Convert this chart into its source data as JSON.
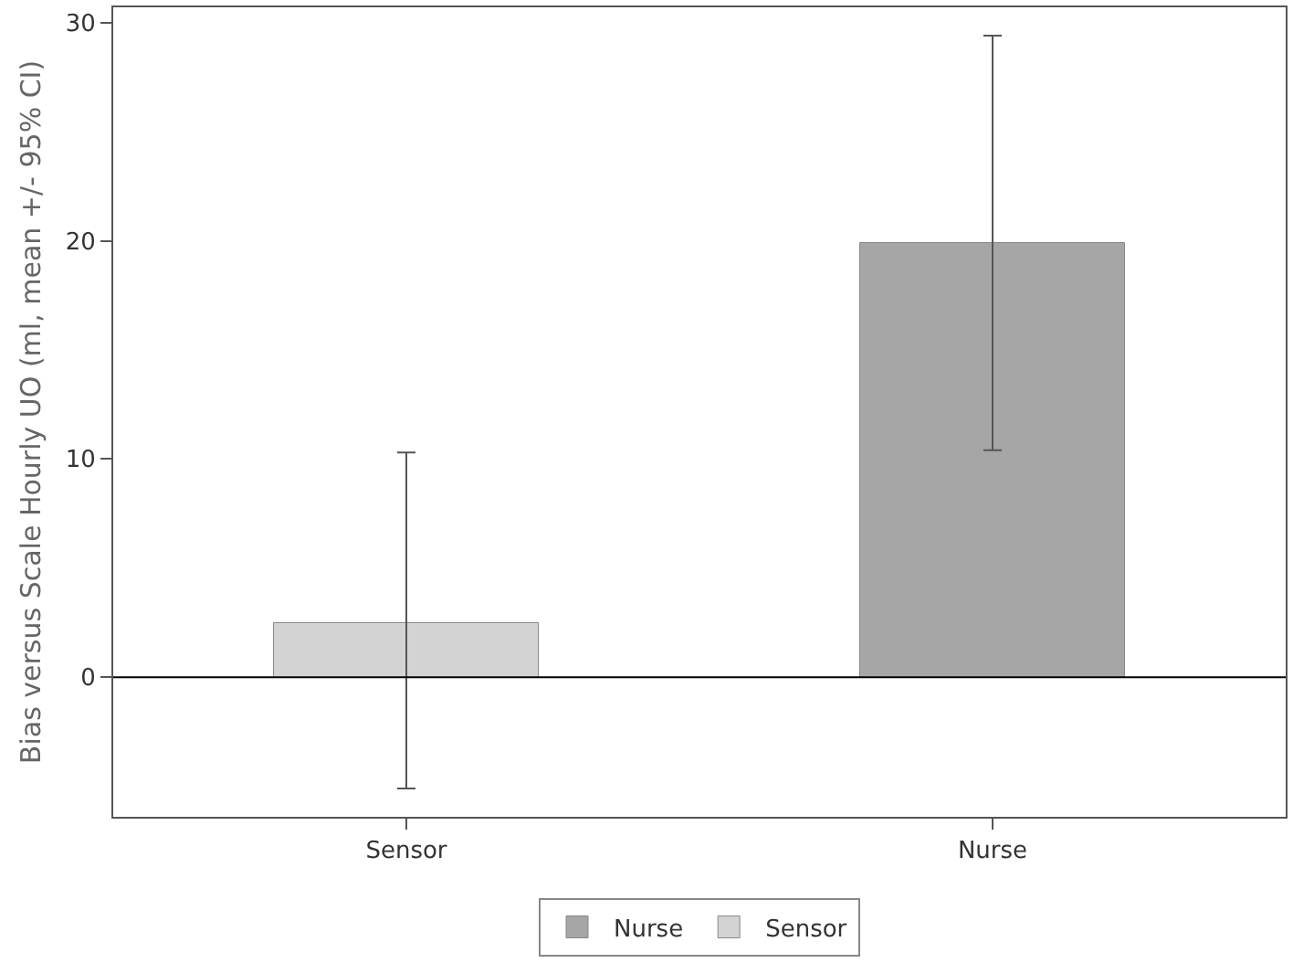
{
  "chart_data": {
    "type": "bar",
    "ylabel": "Bias versus Scale Hourly UO (ml, mean +/- 95% CI)",
    "categories": [
      "Sensor",
      "Nurse"
    ],
    "series": [
      {
        "name": "Nurse",
        "color": "#a6a6a6",
        "values": [
          null,
          19.9
        ],
        "errors": [
          null,
          [
            10.4,
            29.4
          ]
        ]
      },
      {
        "name": "Sensor",
        "color": "#d3d3d3",
        "values": [
          2.5,
          null
        ],
        "errors": [
          [
            -5.1,
            10.3
          ],
          null
        ]
      }
    ],
    "ylim": [
      -6.4,
      30.7
    ],
    "yticks": [
      0,
      10,
      20,
      30
    ],
    "grid": false,
    "legend": "bottom",
    "ref_lines": [
      {
        "axis": "y",
        "value": 0,
        "color": "#000000"
      }
    ]
  }
}
